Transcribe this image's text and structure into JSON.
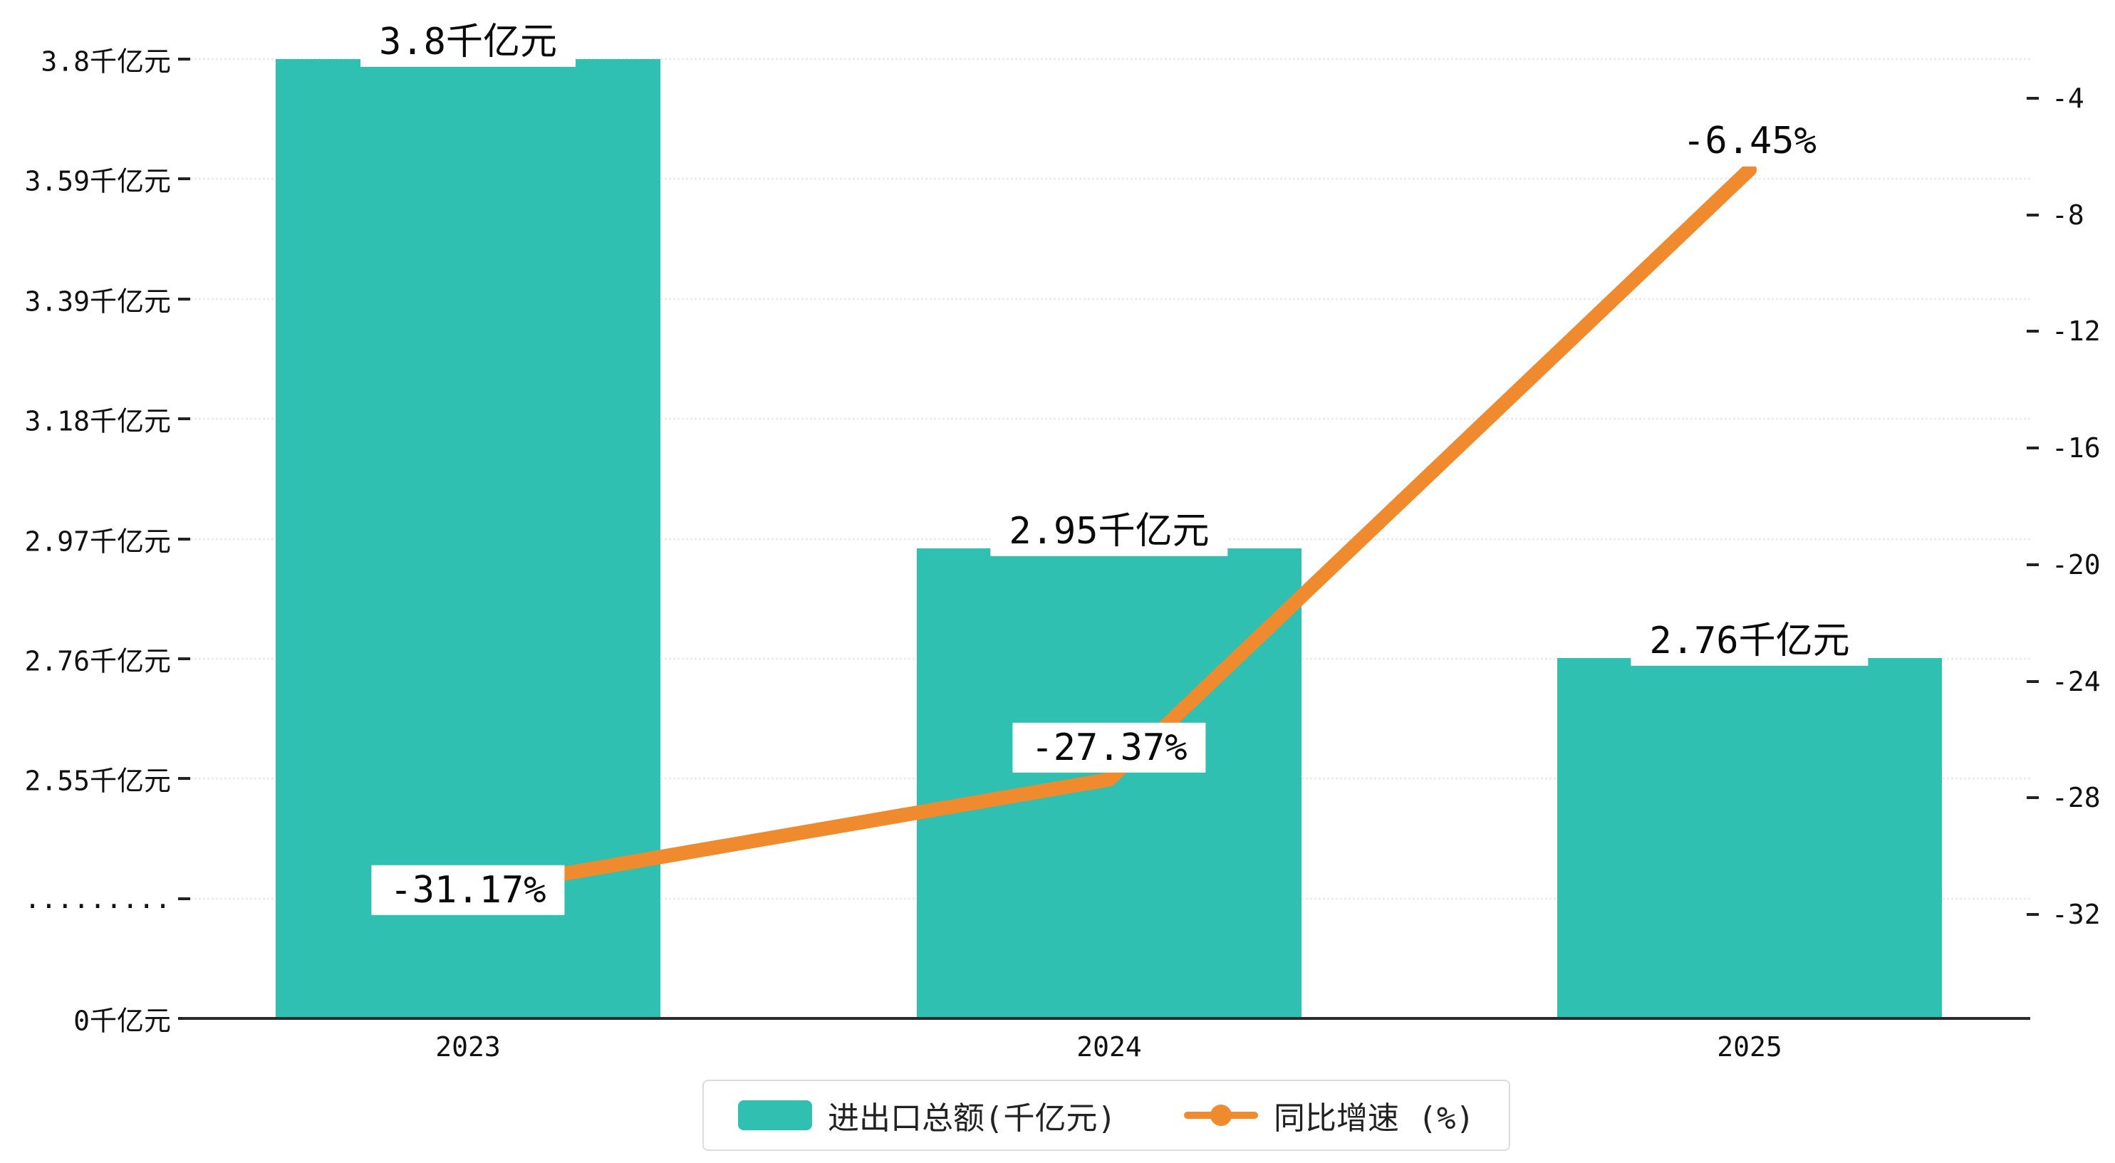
{
  "chart_data": {
    "type": "bar",
    "combo": "bar+line",
    "categories": [
      "2023",
      "2024",
      "2025"
    ],
    "series": [
      {
        "name": "进出口总额(千亿元)",
        "type": "bar",
        "values": [
          3.8,
          2.95,
          2.76
        ],
        "labels": [
          "3.8千亿元",
          "2.95千亿元",
          "2.76千亿元"
        ],
        "color": "#2fc0b2"
      },
      {
        "name": "同比增速 (%)",
        "type": "line",
        "values": [
          -31.17,
          -27.37,
          -6.45
        ],
        "labels": [
          "-31.17%",
          "-27.37%",
          "-6.45%"
        ],
        "color": "#ef8a2f"
      }
    ],
    "left_axis": {
      "ticks": [
        "3.8千亿元",
        "3.59千亿元",
        "3.39千亿元",
        "3.18千亿元",
        "2.97千亿元",
        "2.76千亿元",
        "2.55千亿元",
        ".........",
        "0千亿元"
      ],
      "tick_values": [
        3.8,
        3.59,
        3.39,
        3.18,
        2.97,
        2.76,
        2.55,
        null,
        0
      ],
      "axis_break": true,
      "linear_top": 3.8,
      "linear_bottom": 2.55
    },
    "right_axis": {
      "ticks": [
        "-4",
        "-8",
        "-12",
        "-16",
        "-20",
        "-24",
        "-28",
        "-32"
      ],
      "tick_values": [
        -4,
        -8,
        -12,
        -16,
        -20,
        -24,
        -28,
        -32
      ]
    },
    "legend": {
      "position": "bottom",
      "items": [
        "进出口总额(千亿元)",
        "同比增速 (%)"
      ]
    },
    "grid": "dotted-horizontal"
  },
  "colors": {
    "bar": "#2fc0b2",
    "line": "#ef8a2f",
    "axis": "#2b2b2b",
    "grid": "#ececec",
    "text": "#111111",
    "legend_border": "#dcdcdc",
    "label_bg": "#ffffff"
  }
}
